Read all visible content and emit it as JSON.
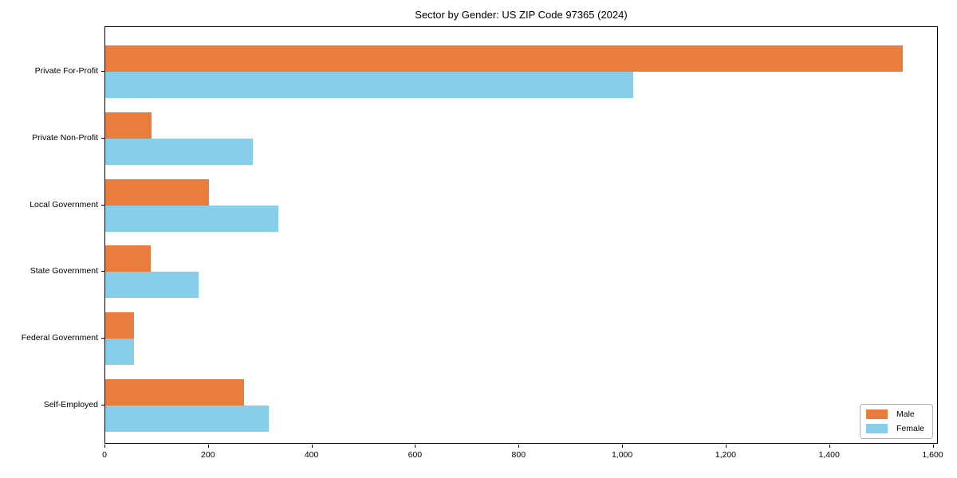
{
  "title": "Sector by Gender: US ZIP Code 97365 (2024)",
  "chart_data": {
    "type": "bar",
    "orientation": "horizontal",
    "title": "Sector by Gender: US ZIP Code 97365 (2024)",
    "xlabel": "",
    "ylabel": "",
    "categories": [
      "Private For-Profit",
      "Private Non-Profit",
      "Local Government",
      "State Government",
      "Federal Government",
      "Self-Employed"
    ],
    "series": [
      {
        "name": "Male",
        "color": "#e87d3e",
        "values": [
          1540,
          90,
          200,
          88,
          55,
          268
        ]
      },
      {
        "name": "Female",
        "color": "#87ceeb",
        "values": [
          1020,
          285,
          335,
          180,
          55,
          315
        ]
      }
    ],
    "xlim": [
      0,
      1610
    ],
    "x_ticks": [
      0,
      200,
      400,
      600,
      800,
      1000,
      1200,
      1400,
      1600
    ],
    "x_tick_labels": [
      "0",
      "200",
      "400",
      "600",
      "800",
      "1,000",
      "1,200",
      "1,400",
      "1,600"
    ],
    "legend_position": "lower right",
    "grid": false,
    "plot_border_color": "#000000",
    "background_color": "#ffffff"
  }
}
